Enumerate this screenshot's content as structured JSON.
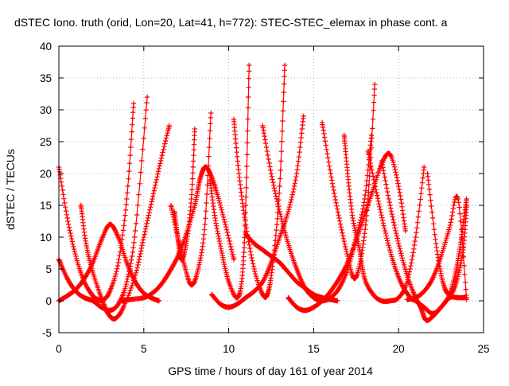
{
  "chart_data": {
    "type": "scatter",
    "title": "dSTEC Iono. truth (orid, Lon=20, Lat=41, h=772): STEC-STEC_elemax in phase cont. a",
    "xlabel": "GPS time / hours of day 161 of year 2014",
    "ylabel": "dSTEC  / TECUs",
    "xlim": [
      0,
      25
    ],
    "ylim": [
      -5,
      40
    ],
    "x_ticks": [
      "0",
      "5",
      "10",
      "15",
      "20",
      "25"
    ],
    "y_ticks": [
      "-5",
      "0",
      "5",
      "10",
      "15",
      "20",
      "25",
      "30",
      "35",
      "40"
    ],
    "grid": true,
    "marker": "plus",
    "colors": {
      "series": "#ff0000"
    },
    "series": [
      {
        "x": [
          0.0,
          0.5,
          1.0,
          1.5,
          2.0,
          2.3,
          2.6,
          3.0,
          3.5,
          4.0,
          4.4
        ],
        "values": [
          21.0,
          13.0,
          7.0,
          3.0,
          0.8,
          0.2,
          0.1,
          1.5,
          6.0,
          16.0,
          31.0
        ]
      },
      {
        "x": [
          0.0,
          0.5,
          1.0,
          1.5,
          2.0,
          2.5,
          3.0,
          3.5,
          4.0,
          4.5,
          5.2
        ],
        "values": [
          6.5,
          3.5,
          1.5,
          0.5,
          0.0,
          -1.0,
          -1.5,
          -0.5,
          3.0,
          11.0,
          32.0
        ]
      },
      {
        "x": [
          0.0,
          0.5,
          1.0,
          1.5,
          2.0,
          2.5,
          3.0,
          3.5,
          4.0,
          4.5,
          5.0,
          5.5,
          5.9
        ],
        "values": [
          0.0,
          0.8,
          1.8,
          3.5,
          6.0,
          9.5,
          12.0,
          10.0,
          6.0,
          3.0,
          1.2,
          0.4,
          0.0
        ]
      },
      {
        "x": [
          1.3,
          1.6,
          2.0,
          2.5,
          2.9,
          3.3,
          3.8,
          4.5,
          5.0,
          5.5,
          6.0,
          6.5
        ],
        "values": [
          15.0,
          9.0,
          4.5,
          0.5,
          -2.0,
          -2.8,
          -1.0,
          4.0,
          10.0,
          16.0,
          22.0,
          27.5
        ]
      },
      {
        "x": [
          3.7,
          4.2,
          5.0,
          5.5,
          6.0,
          6.5,
          7.0,
          7.5,
          8.0,
          8.3,
          8.6,
          8.9,
          9.3,
          9.8,
          10.3
        ],
        "values": [
          0.0,
          0.2,
          0.5,
          1.2,
          2.5,
          4.5,
          7.0,
          10.5,
          15.0,
          19.0,
          21.0,
          20.0,
          17.0,
          12.0,
          6.5
        ]
      },
      {
        "x": [
          6.6,
          7.0,
          7.4,
          7.8,
          8.2,
          8.6,
          8.95
        ],
        "values": [
          15.0,
          10.0,
          5.5,
          2.5,
          5.0,
          12.0,
          29.5
        ]
      },
      {
        "x": [
          6.8,
          7.0,
          7.2,
          7.5,
          7.8,
          8.0
        ],
        "values": [
          14.0,
          10.0,
          6.5,
          9.0,
          16.0,
          27.0
        ]
      },
      {
        "x": [
          8.9,
          9.2,
          9.6,
          10.0,
          10.5,
          10.8,
          11.0,
          11.2
        ],
        "values": [
          19.0,
          13.0,
          7.5,
          3.0,
          0.5,
          4.0,
          15.0,
          37.0
        ]
      },
      {
        "x": [
          10.3,
          10.6,
          11.0,
          11.5,
          12.0,
          12.3,
          12.6,
          13.0,
          13.3
        ],
        "values": [
          28.5,
          20.0,
          12.0,
          5.0,
          1.0,
          1.2,
          6.0,
          18.0,
          37.0
        ]
      },
      {
        "x": [
          9.0,
          9.5,
          10.0,
          10.5,
          11.0,
          11.5,
          12.0,
          12.5,
          13.0,
          13.5,
          14.0,
          14.4
        ],
        "values": [
          1.0,
          -0.5,
          -1.0,
          -0.5,
          0.5,
          1.5,
          3.0,
          6.0,
          10.0,
          14.0,
          20.0,
          29.0
        ]
      },
      {
        "x": [
          11.0,
          11.5,
          12.0,
          12.5,
          13.0,
          13.5,
          14.0,
          14.5,
          15.0,
          15.5,
          16.0,
          16.4
        ],
        "values": [
          10.5,
          9.0,
          8.0,
          7.0,
          6.0,
          4.5,
          3.0,
          2.0,
          1.0,
          0.5,
          0.2,
          0.0
        ]
      },
      {
        "x": [
          12.0,
          12.5,
          13.0,
          13.5,
          14.0,
          14.5,
          15.0,
          15.5,
          16.0,
          16.5,
          17.0,
          17.5,
          18.0,
          18.4
        ],
        "values": [
          27.5,
          20.0,
          14.0,
          9.0,
          5.0,
          2.0,
          0.5,
          0.0,
          0.5,
          2.0,
          5.0,
          10.0,
          16.0,
          26.0
        ]
      },
      {
        "x": [
          13.5,
          14.0,
          14.5,
          15.0,
          15.5,
          16.0,
          16.5,
          17.0,
          17.5,
          18.0,
          18.5,
          19.0,
          19.5,
          20.0,
          20.4
        ],
        "values": [
          0.5,
          -1.0,
          -1.5,
          -1.0,
          0.0,
          1.5,
          3.5,
          6.0,
          9.5,
          13.5,
          17.5,
          21.5,
          23.0,
          18.0,
          11.0
        ]
      },
      {
        "x": [
          15.5,
          16.0,
          16.5,
          17.0,
          17.4,
          17.8,
          18.2,
          18.6
        ],
        "values": [
          28.0,
          20.0,
          13.0,
          7.0,
          3.5,
          7.0,
          16.0,
          34.0
        ]
      },
      {
        "x": [
          16.8,
          17.0,
          17.3,
          17.7,
          18.0,
          18.5,
          19.0,
          19.5,
          20.0,
          20.5,
          21.0,
          21.5
        ],
        "values": [
          26.0,
          20.0,
          13.0,
          8.0,
          3.5,
          1.0,
          0.0,
          0.0,
          0.5,
          3.0,
          10.0,
          21.0
        ]
      },
      {
        "x": [
          18.2,
          18.7,
          19.2,
          19.7,
          20.2,
          20.7,
          21.0,
          21.5,
          22.0,
          22.5,
          23.0,
          23.4,
          23.7,
          24.0
        ],
        "values": [
          23.5,
          17.0,
          11.0,
          6.0,
          2.5,
          0.5,
          0.0,
          -1.0,
          -2.0,
          -1.0,
          1.0,
          5.0,
          10.0,
          16.0
        ]
      },
      {
        "x": [
          19.0,
          19.5,
          20.0,
          20.5,
          21.0,
          21.3,
          21.6,
          22.0,
          22.5,
          23.0,
          23.5,
          24.0
        ],
        "values": [
          22.0,
          15.0,
          9.0,
          4.0,
          0.5,
          -1.0,
          -3.0,
          -2.5,
          -1.0,
          0.5,
          0.5,
          0.5
        ]
      },
      {
        "x": [
          20.5,
          21.0,
          21.5,
          22.0,
          22.5,
          23.0,
          23.5,
          24.0
        ],
        "values": [
          0.2,
          0.5,
          1.5,
          3.5,
          7.0,
          11.5,
          16.0,
          0.2
        ]
      },
      {
        "x": [
          21.7,
          22.2,
          22.6,
          23.0,
          23.4,
          23.8,
          24.0
        ],
        "values": [
          20.0,
          9.0,
          3.0,
          1.0,
          3.0,
          8.0,
          15.0
        ]
      }
    ]
  }
}
